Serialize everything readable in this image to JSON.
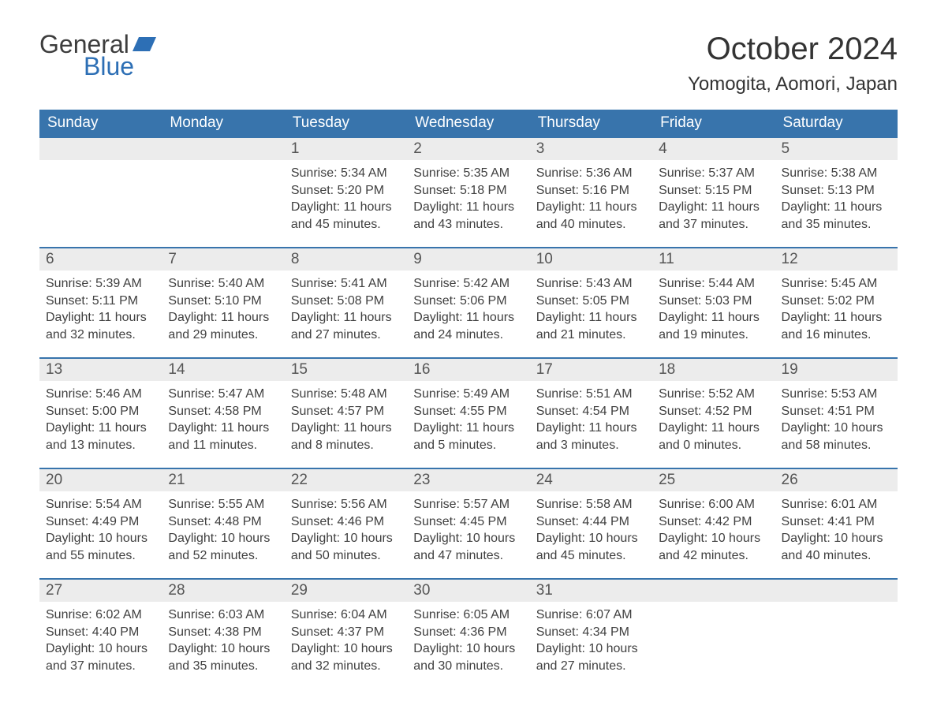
{
  "branding": {
    "logo_text_1": "General",
    "logo_text_2": "Blue",
    "logo_color_gray": "#3d3d3d",
    "logo_color_blue": "#2d6fb5"
  },
  "header": {
    "month_title": "October 2024",
    "location": "Yomogita, Aomori, Japan"
  },
  "style": {
    "header_bg": "#3874ac",
    "header_text": "#ffffff",
    "daynum_bg": "#ececec",
    "border_color": "#3874ac",
    "body_text": "#404040",
    "page_bg": "#ffffff",
    "th_fontsize": 19,
    "daynum_fontsize": 19,
    "content_fontsize": 16
  },
  "weekdays": [
    "Sunday",
    "Monday",
    "Tuesday",
    "Wednesday",
    "Thursday",
    "Friday",
    "Saturday"
  ],
  "weeks": [
    [
      {
        "day": "",
        "sunrise": "",
        "sunset": "",
        "daylight": ""
      },
      {
        "day": "",
        "sunrise": "",
        "sunset": "",
        "daylight": ""
      },
      {
        "day": "1",
        "sunrise": "Sunrise: 5:34 AM",
        "sunset": "Sunset: 5:20 PM",
        "daylight": "Daylight: 11 hours and 45 minutes."
      },
      {
        "day": "2",
        "sunrise": "Sunrise: 5:35 AM",
        "sunset": "Sunset: 5:18 PM",
        "daylight": "Daylight: 11 hours and 43 minutes."
      },
      {
        "day": "3",
        "sunrise": "Sunrise: 5:36 AM",
        "sunset": "Sunset: 5:16 PM",
        "daylight": "Daylight: 11 hours and 40 minutes."
      },
      {
        "day": "4",
        "sunrise": "Sunrise: 5:37 AM",
        "sunset": "Sunset: 5:15 PM",
        "daylight": "Daylight: 11 hours and 37 minutes."
      },
      {
        "day": "5",
        "sunrise": "Sunrise: 5:38 AM",
        "sunset": "Sunset: 5:13 PM",
        "daylight": "Daylight: 11 hours and 35 minutes."
      }
    ],
    [
      {
        "day": "6",
        "sunrise": "Sunrise: 5:39 AM",
        "sunset": "Sunset: 5:11 PM",
        "daylight": "Daylight: 11 hours and 32 minutes."
      },
      {
        "day": "7",
        "sunrise": "Sunrise: 5:40 AM",
        "sunset": "Sunset: 5:10 PM",
        "daylight": "Daylight: 11 hours and 29 minutes."
      },
      {
        "day": "8",
        "sunrise": "Sunrise: 5:41 AM",
        "sunset": "Sunset: 5:08 PM",
        "daylight": "Daylight: 11 hours and 27 minutes."
      },
      {
        "day": "9",
        "sunrise": "Sunrise: 5:42 AM",
        "sunset": "Sunset: 5:06 PM",
        "daylight": "Daylight: 11 hours and 24 minutes."
      },
      {
        "day": "10",
        "sunrise": "Sunrise: 5:43 AM",
        "sunset": "Sunset: 5:05 PM",
        "daylight": "Daylight: 11 hours and 21 minutes."
      },
      {
        "day": "11",
        "sunrise": "Sunrise: 5:44 AM",
        "sunset": "Sunset: 5:03 PM",
        "daylight": "Daylight: 11 hours and 19 minutes."
      },
      {
        "day": "12",
        "sunrise": "Sunrise: 5:45 AM",
        "sunset": "Sunset: 5:02 PM",
        "daylight": "Daylight: 11 hours and 16 minutes."
      }
    ],
    [
      {
        "day": "13",
        "sunrise": "Sunrise: 5:46 AM",
        "sunset": "Sunset: 5:00 PM",
        "daylight": "Daylight: 11 hours and 13 minutes."
      },
      {
        "day": "14",
        "sunrise": "Sunrise: 5:47 AM",
        "sunset": "Sunset: 4:58 PM",
        "daylight": "Daylight: 11 hours and 11 minutes."
      },
      {
        "day": "15",
        "sunrise": "Sunrise: 5:48 AM",
        "sunset": "Sunset: 4:57 PM",
        "daylight": "Daylight: 11 hours and 8 minutes."
      },
      {
        "day": "16",
        "sunrise": "Sunrise: 5:49 AM",
        "sunset": "Sunset: 4:55 PM",
        "daylight": "Daylight: 11 hours and 5 minutes."
      },
      {
        "day": "17",
        "sunrise": "Sunrise: 5:51 AM",
        "sunset": "Sunset: 4:54 PM",
        "daylight": "Daylight: 11 hours and 3 minutes."
      },
      {
        "day": "18",
        "sunrise": "Sunrise: 5:52 AM",
        "sunset": "Sunset: 4:52 PM",
        "daylight": "Daylight: 11 hours and 0 minutes."
      },
      {
        "day": "19",
        "sunrise": "Sunrise: 5:53 AM",
        "sunset": "Sunset: 4:51 PM",
        "daylight": "Daylight: 10 hours and 58 minutes."
      }
    ],
    [
      {
        "day": "20",
        "sunrise": "Sunrise: 5:54 AM",
        "sunset": "Sunset: 4:49 PM",
        "daylight": "Daylight: 10 hours and 55 minutes."
      },
      {
        "day": "21",
        "sunrise": "Sunrise: 5:55 AM",
        "sunset": "Sunset: 4:48 PM",
        "daylight": "Daylight: 10 hours and 52 minutes."
      },
      {
        "day": "22",
        "sunrise": "Sunrise: 5:56 AM",
        "sunset": "Sunset: 4:46 PM",
        "daylight": "Daylight: 10 hours and 50 minutes."
      },
      {
        "day": "23",
        "sunrise": "Sunrise: 5:57 AM",
        "sunset": "Sunset: 4:45 PM",
        "daylight": "Daylight: 10 hours and 47 minutes."
      },
      {
        "day": "24",
        "sunrise": "Sunrise: 5:58 AM",
        "sunset": "Sunset: 4:44 PM",
        "daylight": "Daylight: 10 hours and 45 minutes."
      },
      {
        "day": "25",
        "sunrise": "Sunrise: 6:00 AM",
        "sunset": "Sunset: 4:42 PM",
        "daylight": "Daylight: 10 hours and 42 minutes."
      },
      {
        "day": "26",
        "sunrise": "Sunrise: 6:01 AM",
        "sunset": "Sunset: 4:41 PM",
        "daylight": "Daylight: 10 hours and 40 minutes."
      }
    ],
    [
      {
        "day": "27",
        "sunrise": "Sunrise: 6:02 AM",
        "sunset": "Sunset: 4:40 PM",
        "daylight": "Daylight: 10 hours and 37 minutes."
      },
      {
        "day": "28",
        "sunrise": "Sunrise: 6:03 AM",
        "sunset": "Sunset: 4:38 PM",
        "daylight": "Daylight: 10 hours and 35 minutes."
      },
      {
        "day": "29",
        "sunrise": "Sunrise: 6:04 AM",
        "sunset": "Sunset: 4:37 PM",
        "daylight": "Daylight: 10 hours and 32 minutes."
      },
      {
        "day": "30",
        "sunrise": "Sunrise: 6:05 AM",
        "sunset": "Sunset: 4:36 PM",
        "daylight": "Daylight: 10 hours and 30 minutes."
      },
      {
        "day": "31",
        "sunrise": "Sunrise: 6:07 AM",
        "sunset": "Sunset: 4:34 PM",
        "daylight": "Daylight: 10 hours and 27 minutes."
      },
      {
        "day": "",
        "sunrise": "",
        "sunset": "",
        "daylight": ""
      },
      {
        "day": "",
        "sunrise": "",
        "sunset": "",
        "daylight": ""
      }
    ]
  ]
}
